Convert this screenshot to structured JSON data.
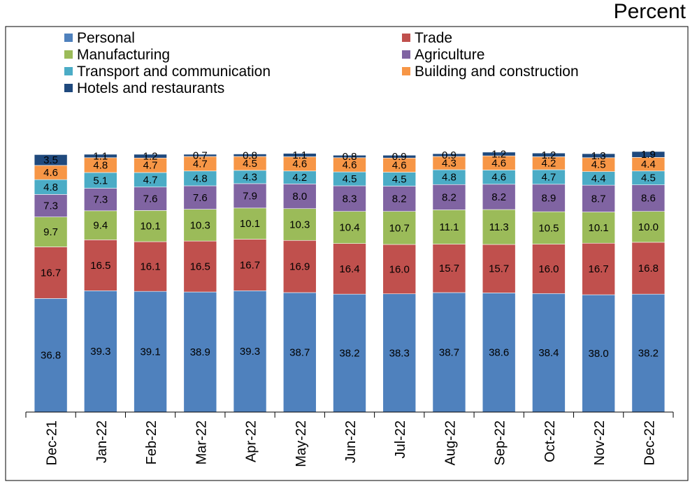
{
  "chart_data": {
    "type": "bar",
    "stacked": true,
    "unit_label": "Percent",
    "categories": [
      "Dec-21",
      "Jan-22",
      "Feb-22",
      "Mar-22",
      "Apr-22",
      "May-22",
      "Jun-22",
      "Jul-22",
      "Aug-22",
      "Sep-22",
      "Oct-22",
      "Nov-22",
      "Dec-22"
    ],
    "ylim": [
      0,
      100
    ],
    "grid": false,
    "legend_position": "top",
    "series": [
      {
        "name": "Personal",
        "color": "#4f81bd",
        "values": [
          36.8,
          39.3,
          39.1,
          38.9,
          39.3,
          38.7,
          38.2,
          38.3,
          38.7,
          38.6,
          38.4,
          38.0,
          38.2
        ],
        "labels": [
          "36.8",
          "39.3",
          "39.1",
          "38.9",
          "39.3",
          "38.7",
          "38.2",
          "38.3",
          "38.7",
          "38.6",
          "38.4",
          "38.0",
          "38.2"
        ]
      },
      {
        "name": "Trade",
        "color": "#c0504d",
        "values": [
          16.7,
          16.5,
          16.1,
          16.5,
          16.7,
          16.9,
          16.4,
          16.0,
          15.7,
          15.7,
          16.0,
          16.7,
          16.8
        ],
        "labels": [
          "16.7",
          "16.5",
          "16.1",
          "16.5",
          "16.7",
          "16.9",
          "16.4",
          "16.0",
          "15.7",
          "15.7",
          "16.0",
          "16.7",
          "16.8"
        ]
      },
      {
        "name": "Manufacturing",
        "color": "#9bbb59",
        "values": [
          9.7,
          9.4,
          10.1,
          10.3,
          10.1,
          10.3,
          10.4,
          10.7,
          11.1,
          11.3,
          10.5,
          10.1,
          10.0
        ],
        "labels": [
          "9.7",
          "9.4",
          "10.1",
          "10.3",
          "10.1",
          "10.3",
          "10.4",
          "10.7",
          "11.1",
          "11.3",
          "10.5",
          "10.1",
          "10.0"
        ]
      },
      {
        "name": "Agriculture",
        "color": "#8064a2",
        "values": [
          7.3,
          7.3,
          7.6,
          7.6,
          7.9,
          8.0,
          8.3,
          8.2,
          8.2,
          8.2,
          8.9,
          8.7,
          8.6
        ],
        "labels": [
          "7.3",
          "7.3",
          "7.6",
          "7.6",
          "7.9",
          "8.0",
          "8.3",
          "8.2",
          "8.2",
          "8.2",
          "8.9",
          "8.7",
          "8.6"
        ]
      },
      {
        "name": "Transport and communication",
        "color": "#4bacc6",
        "values": [
          4.8,
          5.1,
          4.7,
          4.8,
          4.3,
          4.2,
          4.5,
          4.5,
          4.8,
          4.6,
          4.7,
          4.4,
          4.5
        ],
        "labels": [
          "4.8",
          "5.1",
          "4.7",
          "4.8",
          "4.3",
          "4.2",
          "4.5",
          "4.5",
          "4.8",
          "4.6",
          "4.7",
          "4.4",
          "4.5"
        ]
      },
      {
        "name": "Building and construction",
        "color": "#f79646",
        "values": [
          4.6,
          4.8,
          4.7,
          4.7,
          4.5,
          4.6,
          4.6,
          4.6,
          4.3,
          4.6,
          4.2,
          4.5,
          4.4
        ],
        "labels": [
          "4.6",
          "4.8",
          "4.7",
          "4.7",
          "4.5",
          "4.6",
          "4.6",
          "4.6",
          "4.3",
          "4.6",
          "4.2",
          "4.5",
          "4.4"
        ]
      },
      {
        "name": "Hotels and restaurants",
        "color": "#1f497d",
        "values": [
          3.5,
          1.1,
          1.2,
          0.7,
          0.8,
          1.1,
          0.8,
          0.9,
          0.9,
          1.2,
          1.2,
          1.3,
          1.9
        ],
        "labels": [
          "3.5",
          "1.1",
          "1.2",
          "0.7",
          "0.8",
          "1.1",
          "0.8",
          "0.9",
          "0.9",
          "1.2",
          "1.2",
          "1.3",
          "1.9"
        ]
      }
    ]
  }
}
